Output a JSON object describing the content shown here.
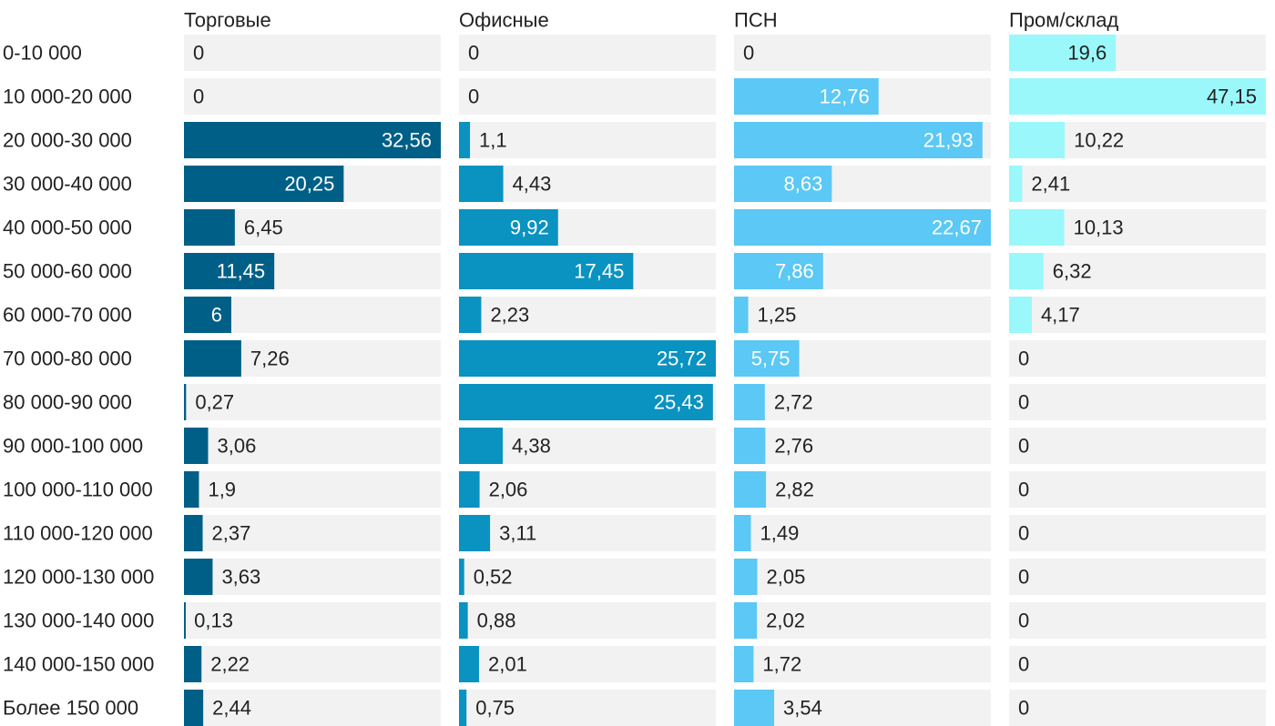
{
  "chart_data": {
    "type": "bar",
    "orientation": "horizontal",
    "layout": "small-multiples",
    "categories": [
      "0-10 000",
      "10 000-20 000",
      "20 000-30 000",
      "30 000-40 000",
      "40 000-50 000",
      "50 000-60 000",
      "60 000-70 000",
      "70 000-80 000",
      "80 000-90 000",
      "90 000-100 000",
      "100 000-110 000",
      "110 000-120 000",
      "120 000-130 000",
      "130 000-140 000",
      "140 000-150 000",
      "Более 150 000"
    ],
    "series": [
      {
        "name": "Торговые",
        "color": "#005f87",
        "max": 32.56,
        "values": [
          0,
          0,
          32.56,
          20.25,
          6.45,
          11.45,
          6,
          7.26,
          0.27,
          3.06,
          1.9,
          2.37,
          3.63,
          0.13,
          2.22,
          2.44
        ],
        "labels": [
          "0",
          "0",
          "32,56",
          "20,25",
          "6,45",
          "11,45",
          "6",
          "7,26",
          "0,27",
          "3,06",
          "1,9",
          "2,37",
          "3,63",
          "0,13",
          "2,22",
          "2,44"
        ]
      },
      {
        "name": "Офисные",
        "color": "#0a92c1",
        "max": 25.72,
        "values": [
          0,
          0,
          1.1,
          4.43,
          9.92,
          17.45,
          2.23,
          25.72,
          25.43,
          4.38,
          2.06,
          3.11,
          0.52,
          0.88,
          2.01,
          0.75
        ],
        "labels": [
          "0",
          "0",
          "1,1",
          "4,43",
          "9,92",
          "17,45",
          "2,23",
          "25,72",
          "25,43",
          "4,38",
          "2,06",
          "3,11",
          "0,52",
          "0,88",
          "2,01",
          "0,75"
        ]
      },
      {
        "name": "ПСН",
        "color": "#5bc8f5",
        "max": 22.67,
        "values": [
          0,
          12.76,
          21.93,
          8.63,
          22.67,
          7.86,
          1.25,
          5.75,
          2.72,
          2.76,
          2.82,
          1.49,
          2.05,
          2.02,
          1.72,
          3.54
        ],
        "labels": [
          "0",
          "12,76",
          "21,93",
          "8,63",
          "22,67",
          "7,86",
          "1,25",
          "5,75",
          "2,72",
          "2,76",
          "2,82",
          "1,49",
          "2,05",
          "2,02",
          "1,72",
          "3,54"
        ]
      },
      {
        "name": "Пром/склад",
        "color": "#9af8fb",
        "max": 47.15,
        "values": [
          19.6,
          47.15,
          10.22,
          2.41,
          10.13,
          6.32,
          4.17,
          0,
          0,
          0,
          0,
          0,
          0,
          0,
          0,
          0
        ],
        "labels": [
          "19,6",
          "47,15",
          "10,22",
          "2,41",
          "10,13",
          "6,32",
          "4,17",
          "0",
          "0",
          "0",
          "0",
          "0",
          "0",
          "0",
          "0",
          "0"
        ]
      }
    ],
    "title": "",
    "xlabel": "",
    "ylabel": "",
    "grid": false,
    "legend": "none",
    "colors": {
      "track": "#f2f2f2",
      "text_dark": "#222222",
      "text_light": "#ffffff"
    }
  }
}
